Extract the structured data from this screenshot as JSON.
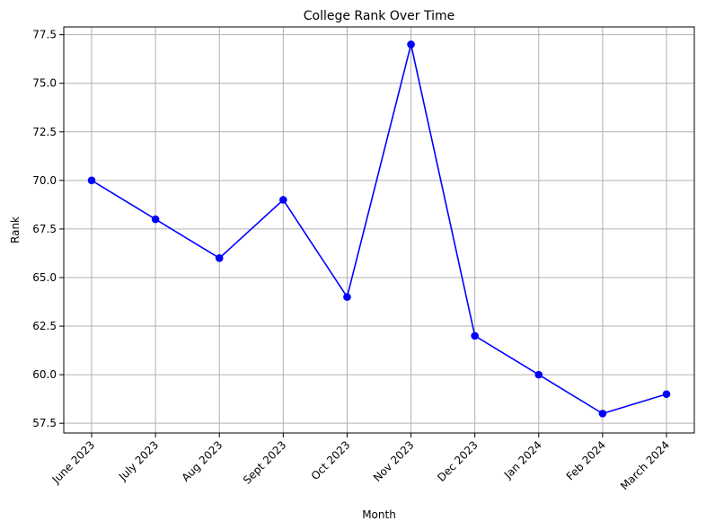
{
  "chart_data": {
    "type": "line",
    "title": "College Rank Over Time",
    "xlabel": "Month",
    "ylabel": "Rank",
    "categories": [
      "June 2023",
      "July 2023",
      "Aug 2023",
      "Sept 2023",
      "Oct 2023",
      "Nov 2023",
      "Dec 2023",
      "Jan 2024",
      "Feb 2024",
      "March 2024"
    ],
    "series": [
      {
        "values": [
          70,
          68,
          66,
          69,
          64,
          77,
          62,
          60,
          58,
          59
        ],
        "color": "#0000ff",
        "marker": "circle"
      }
    ],
    "ylim": [
      57.0,
      77.9
    ],
    "yticks": [
      57.5,
      60.0,
      62.5,
      65.0,
      67.5,
      70.0,
      72.5,
      75.0,
      77.5
    ],
    "ytick_labels": [
      "57.5",
      "60.0",
      "62.5",
      "65.0",
      "67.5",
      "70.0",
      "72.5",
      "75.0",
      "77.5"
    ],
    "xtick_rotation": "45 degrees",
    "grid": true,
    "grid_color": "#b0b0b0",
    "legend": "none"
  }
}
